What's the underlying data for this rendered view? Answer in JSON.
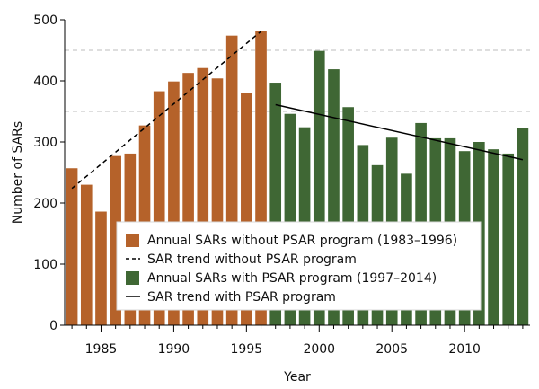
{
  "chart_data": {
    "type": "bar",
    "title": "",
    "xlabel": "Year",
    "ylabel": "Number of SARs",
    "ylim": [
      0,
      500
    ],
    "yticks": [
      0,
      100,
      200,
      300,
      400,
      500
    ],
    "xticks": [
      1985,
      1990,
      1995,
      2000,
      2005,
      2010
    ],
    "grid": {
      "dashed_y": [
        350,
        450
      ]
    },
    "series": [
      {
        "name": "Annual SARs without PSAR program (1983–1996)",
        "color": "#b5622a",
        "x": [
          1983,
          1984,
          1985,
          1986,
          1987,
          1988,
          1989,
          1990,
          1991,
          1992,
          1993,
          1994,
          1995,
          1996
        ],
        "values": [
          257,
          230,
          186,
          277,
          281,
          327,
          383,
          399,
          413,
          421,
          404,
          474,
          380,
          482
        ]
      },
      {
        "name": "Annual SARs with PSAR program (1997–2014)",
        "color": "#3f6734",
        "x": [
          1997,
          1998,
          1999,
          2000,
          2001,
          2002,
          2003,
          2004,
          2005,
          2006,
          2007,
          2008,
          2009,
          2010,
          2011,
          2012,
          2013,
          2014
        ],
        "values": [
          397,
          346,
          324,
          449,
          419,
          357,
          295,
          262,
          307,
          248,
          331,
          306,
          306,
          285,
          300,
          288,
          281,
          323
        ]
      }
    ],
    "trends": [
      {
        "name": "SAR trend without PSAR program",
        "style": "dashed",
        "from": [
          1983,
          224
        ],
        "to": [
          1996,
          481
        ]
      },
      {
        "name": "SAR trend with PSAR program",
        "style": "solid",
        "from": [
          1997,
          361
        ],
        "to": [
          2014,
          271
        ]
      }
    ],
    "legend": {
      "position": "center-bottom",
      "entries": [
        {
          "label": "Annual SARs without PSAR program (1983–1996)",
          "marker": "box",
          "color": "#b5622a"
        },
        {
          "label": "SAR trend without PSAR program",
          "marker": "dashed-line",
          "color": "#000000"
        },
        {
          "label": "Annual SARs with PSAR program (1997–2014)",
          "marker": "box",
          "color": "#3f6734"
        },
        {
          "label": "SAR trend with PSAR program",
          "marker": "solid-line",
          "color": "#000000"
        }
      ]
    }
  }
}
